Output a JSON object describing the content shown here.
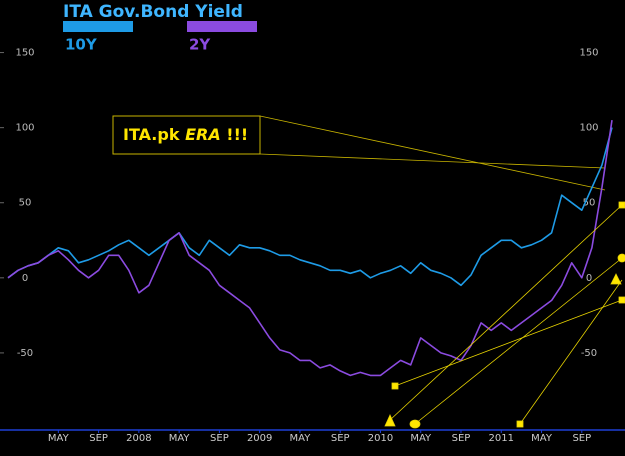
{
  "chart_data": {
    "type": "line",
    "title": "ITA Gov.Bond Yield",
    "annotation": [
      "ITA.pk",
      "ERA",
      "!!!"
    ],
    "categories": [
      null,
      null,
      null,
      null,
      null,
      "MAY",
      null,
      null,
      null,
      "SEP",
      null,
      null,
      null,
      "2008",
      null,
      null,
      null,
      "MAY",
      null,
      null,
      null,
      "SEP",
      null,
      null,
      null,
      "2009",
      null,
      null,
      null,
      "MAY",
      null,
      null,
      null,
      "SEP",
      null,
      null,
      null,
      "2010",
      null,
      null,
      null,
      "MAY",
      null,
      null,
      null,
      "SEP",
      null,
      null,
      null,
      "2011",
      null,
      null,
      null,
      "MAY",
      null,
      null,
      null,
      "SEP",
      null,
      null,
      null
    ],
    "series": [
      {
        "name": "10Y",
        "color": "#1e9be6",
        "values": [
          0,
          5,
          8,
          10,
          15,
          20,
          18,
          10,
          12,
          15,
          18,
          22,
          25,
          20,
          15,
          20,
          25,
          30,
          20,
          15,
          25,
          20,
          15,
          22,
          20,
          20,
          18,
          15,
          15,
          12,
          10,
          8,
          5,
          5,
          3,
          5,
          0,
          3,
          5,
          8,
          3,
          10,
          5,
          3,
          0,
          -5,
          2,
          15,
          20,
          25,
          25,
          20,
          22,
          25,
          30,
          55,
          50,
          45,
          60,
          75,
          100
        ]
      },
      {
        "name": "2Y",
        "color": "#8b4be0",
        "values": [
          0,
          5,
          8,
          10,
          15,
          18,
          12,
          5,
          0,
          5,
          15,
          15,
          5,
          -10,
          -5,
          10,
          25,
          30,
          15,
          10,
          5,
          -5,
          -10,
          -15,
          -20,
          -30,
          -40,
          -48,
          -50,
          -55,
          -55,
          -60,
          -58,
          -62,
          -65,
          -63,
          -65,
          -65,
          -60,
          -55,
          -58,
          -40,
          -45,
          -50,
          -52,
          -55,
          -45,
          -30,
          -35,
          -30,
          -35,
          -30,
          -25,
          -20,
          -15,
          -5,
          10,
          0,
          20,
          60,
          105
        ]
      }
    ],
    "ylim": [
      -100,
      185
    ],
    "yticks": [
      150,
      100,
      50,
      0,
      -50
    ]
  }
}
